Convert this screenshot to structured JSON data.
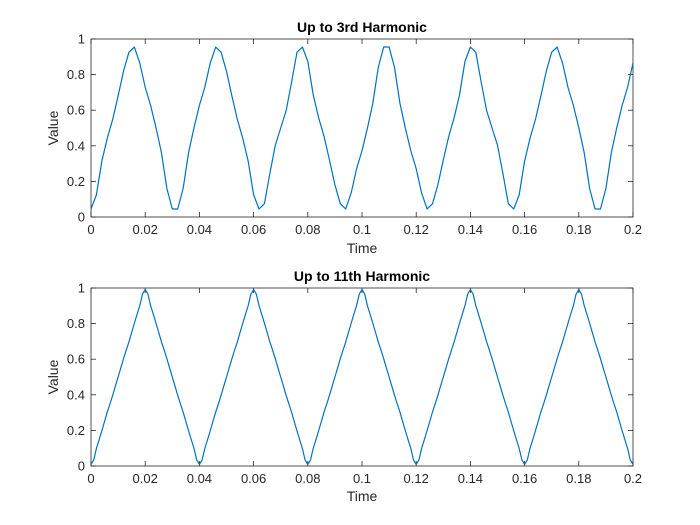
{
  "chart_data": [
    {
      "type": "line",
      "title": "Up to 3rd Harmonic",
      "xlabel": "Time",
      "ylabel": "Value",
      "xlim": [
        0,
        0.2
      ],
      "ylim": [
        0,
        1
      ],
      "xticks": [
        "0",
        "0.02",
        "0.04",
        "0.06",
        "0.08",
        "0.1",
        "0.12",
        "0.14",
        "0.16",
        "0.18",
        "0.2"
      ],
      "yticks": [
        "0",
        "0.2",
        "0.4",
        "0.6",
        "0.8",
        "1"
      ],
      "grid": false,
      "series": [
        {
          "color": "#0072BD",
          "x": [
            0,
            0.002,
            0.004,
            0.006,
            0.008,
            0.01,
            0.012,
            0.014,
            0.016,
            0.018,
            0.02,
            0.022,
            0.024,
            0.026,
            0.028,
            0.03,
            0.032,
            0.034,
            0.036,
            0.038,
            0.04,
            0.042,
            0.044,
            0.046,
            0.048,
            0.05,
            0.052,
            0.054,
            0.056,
            0.058,
            0.06,
            0.062,
            0.064,
            0.066,
            0.068,
            0.07,
            0.072,
            0.074,
            0.076,
            0.078,
            0.08,
            0.082,
            0.084,
            0.086,
            0.088,
            0.09,
            0.092,
            0.094,
            0.096,
            0.098,
            0.1,
            0.102,
            0.104,
            0.106,
            0.108,
            0.11,
            0.112,
            0.114,
            0.116,
            0.118,
            0.12,
            0.122,
            0.124,
            0.126,
            0.128,
            0.13,
            0.132,
            0.134,
            0.136,
            0.138,
            0.14,
            0.142,
            0.144,
            0.146,
            0.148,
            0.15,
            0.152,
            0.154,
            0.156,
            0.158,
            0.16,
            0.162,
            0.164,
            0.166,
            0.168,
            0.17,
            0.172,
            0.174,
            0.176,
            0.178,
            0.18,
            0.182,
            0.184,
            0.186,
            0.188,
            0.19,
            0.192,
            0.194,
            0.196,
            0.198,
            0.2
          ],
          "y": [
            0.045,
            0.125,
            0.314,
            0.442,
            0.548,
            0.68,
            0.819,
            0.926,
            0.955,
            0.865,
            0.729,
            0.627,
            0.501,
            0.361,
            0.16,
            0.045,
            0.045,
            0.16,
            0.361,
            0.501,
            0.627,
            0.729,
            0.865,
            0.955,
            0.926,
            0.819,
            0.68,
            0.548,
            0.442,
            0.314,
            0.125,
            0.045,
            0.075,
            0.244,
            0.403,
            0.5,
            0.597,
            0.756,
            0.925,
            0.955,
            0.875,
            0.686,
            0.558,
            0.452,
            0.32,
            0.181,
            0.074,
            0.045,
            0.135,
            0.271,
            0.373,
            0.499,
            0.639,
            0.84,
            0.955,
            0.955,
            0.84,
            0.639,
            0.499,
            0.373,
            0.271,
            0.135,
            0.045,
            0.074,
            0.181,
            0.32,
            0.452,
            0.558,
            0.686,
            0.875,
            0.955,
            0.925,
            0.756,
            0.597,
            0.5,
            0.403,
            0.244,
            0.075,
            0.045,
            0.125,
            0.314,
            0.442,
            0.548,
            0.68,
            0.819,
            0.926,
            0.955,
            0.865,
            0.729,
            0.627,
            0.501,
            0.361,
            0.16,
            0.045,
            0.045,
            0.16,
            0.361,
            0.501,
            0.627,
            0.729,
            0.865
          ]
        }
      ]
    },
    {
      "type": "line",
      "title": "Up to 11th Harmonic",
      "xlabel": "Time",
      "ylabel": "Value",
      "xlim": [
        0,
        0.2
      ],
      "ylim": [
        0,
        1
      ],
      "xticks": [
        "0",
        "0.02",
        "0.04",
        "0.06",
        "0.08",
        "0.1",
        "0.12",
        "0.14",
        "0.16",
        "0.18",
        "0.2"
      ],
      "yticks": [
        "0",
        "0.2",
        "0.4",
        "0.6",
        "0.8",
        "1"
      ],
      "grid": false,
      "series": [
        {
          "color": "#0072BD",
          "x": [
            0,
            0.001,
            0.002,
            0.003,
            0.004,
            0.005,
            0.006,
            0.007,
            0.008,
            0.009,
            0.01,
            0.011,
            0.012,
            0.013,
            0.014,
            0.015,
            0.016,
            0.017,
            0.018,
            0.019,
            0.02,
            0.021,
            0.022,
            0.023,
            0.024,
            0.025,
            0.026,
            0.027,
            0.028,
            0.029,
            0.03,
            0.031,
            0.032,
            0.033,
            0.034,
            0.035,
            0.036,
            0.037,
            0.038,
            0.039,
            0.04,
            0.041,
            0.042,
            0.043,
            0.044,
            0.045,
            0.046,
            0.047,
            0.048,
            0.049,
            0.05,
            0.051,
            0.052,
            0.053,
            0.054,
            0.055,
            0.056,
            0.057,
            0.058,
            0.059,
            0.06,
            0.061,
            0.062,
            0.063,
            0.064,
            0.065,
            0.066,
            0.067,
            0.068,
            0.069,
            0.07,
            0.071,
            0.072,
            0.073,
            0.074,
            0.075,
            0.076,
            0.077,
            0.078,
            0.079,
            0.08,
            0.081,
            0.082,
            0.083,
            0.084,
            0.085,
            0.086,
            0.087,
            0.088,
            0.089,
            0.09,
            0.091,
            0.092,
            0.093,
            0.094,
            0.095,
            0.096,
            0.097,
            0.098,
            0.099,
            0.1,
            0.101,
            0.102,
            0.103,
            0.104,
            0.105,
            0.106,
            0.107,
            0.108,
            0.109,
            0.11,
            0.111,
            0.112,
            0.113,
            0.114,
            0.115,
            0.116,
            0.117,
            0.118,
            0.119,
            0.12,
            0.121,
            0.122,
            0.123,
            0.124,
            0.125,
            0.126,
            0.127,
            0.128,
            0.129,
            0.13,
            0.131,
            0.132,
            0.133,
            0.134,
            0.135,
            0.136,
            0.137,
            0.138,
            0.139,
            0.14,
            0.141,
            0.142,
            0.143,
            0.144,
            0.145,
            0.146,
            0.147,
            0.148,
            0.149,
            0.15,
            0.151,
            0.152,
            0.153,
            0.154,
            0.155,
            0.156,
            0.157,
            0.158,
            0.159,
            0.16,
            0.161,
            0.162,
            0.163,
            0.164,
            0.165,
            0.166,
            0.167,
            0.168,
            0.169,
            0.17,
            0.171,
            0.172,
            0.173,
            0.174,
            0.175,
            0.176,
            0.177,
            0.178,
            0.179,
            0.18,
            0.181,
            0.182,
            0.183,
            0.184,
            0.185,
            0.186,
            0.187,
            0.188,
            0.189,
            0.19,
            0.191,
            0.192,
            0.193,
            0.194,
            0.195,
            0.196,
            0.197,
            0.198,
            0.199,
            0.2
          ],
          "y": [
            0.009,
            0.034,
            0.099,
            0.148,
            0.198,
            0.25,
            0.303,
            0.349,
            0.397,
            0.449,
            0.5,
            0.551,
            0.603,
            0.651,
            0.697,
            0.75,
            0.802,
            0.852,
            0.901,
            0.966,
            0.991,
            0.966,
            0.901,
            0.852,
            0.802,
            0.75,
            0.697,
            0.651,
            0.603,
            0.551,
            0.5,
            0.449,
            0.397,
            0.349,
            0.303,
            0.25,
            0.198,
            0.148,
            0.099,
            0.034,
            0.009,
            0.034,
            0.099,
            0.148,
            0.198,
            0.25,
            0.303,
            0.349,
            0.397,
            0.449,
            0.5,
            0.551,
            0.603,
            0.651,
            0.697,
            0.75,
            0.802,
            0.852,
            0.901,
            0.966,
            0.991,
            0.966,
            0.901,
            0.852,
            0.802,
            0.75,
            0.697,
            0.651,
            0.603,
            0.551,
            0.5,
            0.449,
            0.397,
            0.349,
            0.303,
            0.25,
            0.198,
            0.148,
            0.099,
            0.034,
            0.009,
            0.034,
            0.099,
            0.148,
            0.198,
            0.25,
            0.303,
            0.349,
            0.397,
            0.449,
            0.5,
            0.551,
            0.603,
            0.651,
            0.697,
            0.75,
            0.802,
            0.852,
            0.901,
            0.966,
            0.991,
            0.966,
            0.901,
            0.852,
            0.802,
            0.75,
            0.697,
            0.651,
            0.603,
            0.551,
            0.5,
            0.449,
            0.397,
            0.349,
            0.303,
            0.25,
            0.198,
            0.148,
            0.099,
            0.034,
            0.009,
            0.034,
            0.099,
            0.148,
            0.198,
            0.25,
            0.303,
            0.349,
            0.397,
            0.449,
            0.5,
            0.551,
            0.603,
            0.651,
            0.697,
            0.75,
            0.802,
            0.852,
            0.901,
            0.966,
            0.991,
            0.966,
            0.901,
            0.852,
            0.802,
            0.75,
            0.697,
            0.651,
            0.603,
            0.551,
            0.5,
            0.449,
            0.397,
            0.349,
            0.303,
            0.25,
            0.198,
            0.148,
            0.099,
            0.034,
            0.009,
            0.034,
            0.099,
            0.148,
            0.198,
            0.25,
            0.303,
            0.349,
            0.397,
            0.449,
            0.5,
            0.551,
            0.603,
            0.651,
            0.697,
            0.75,
            0.802,
            0.852,
            0.901,
            0.966,
            0.991,
            0.966,
            0.901,
            0.852,
            0.802,
            0.75,
            0.697,
            0.651,
            0.603,
            0.551,
            0.5,
            0.449,
            0.397,
            0.349,
            0.303,
            0.25,
            0.198,
            0.148,
            0.099,
            0.034,
            0.009
          ]
        }
      ]
    }
  ]
}
